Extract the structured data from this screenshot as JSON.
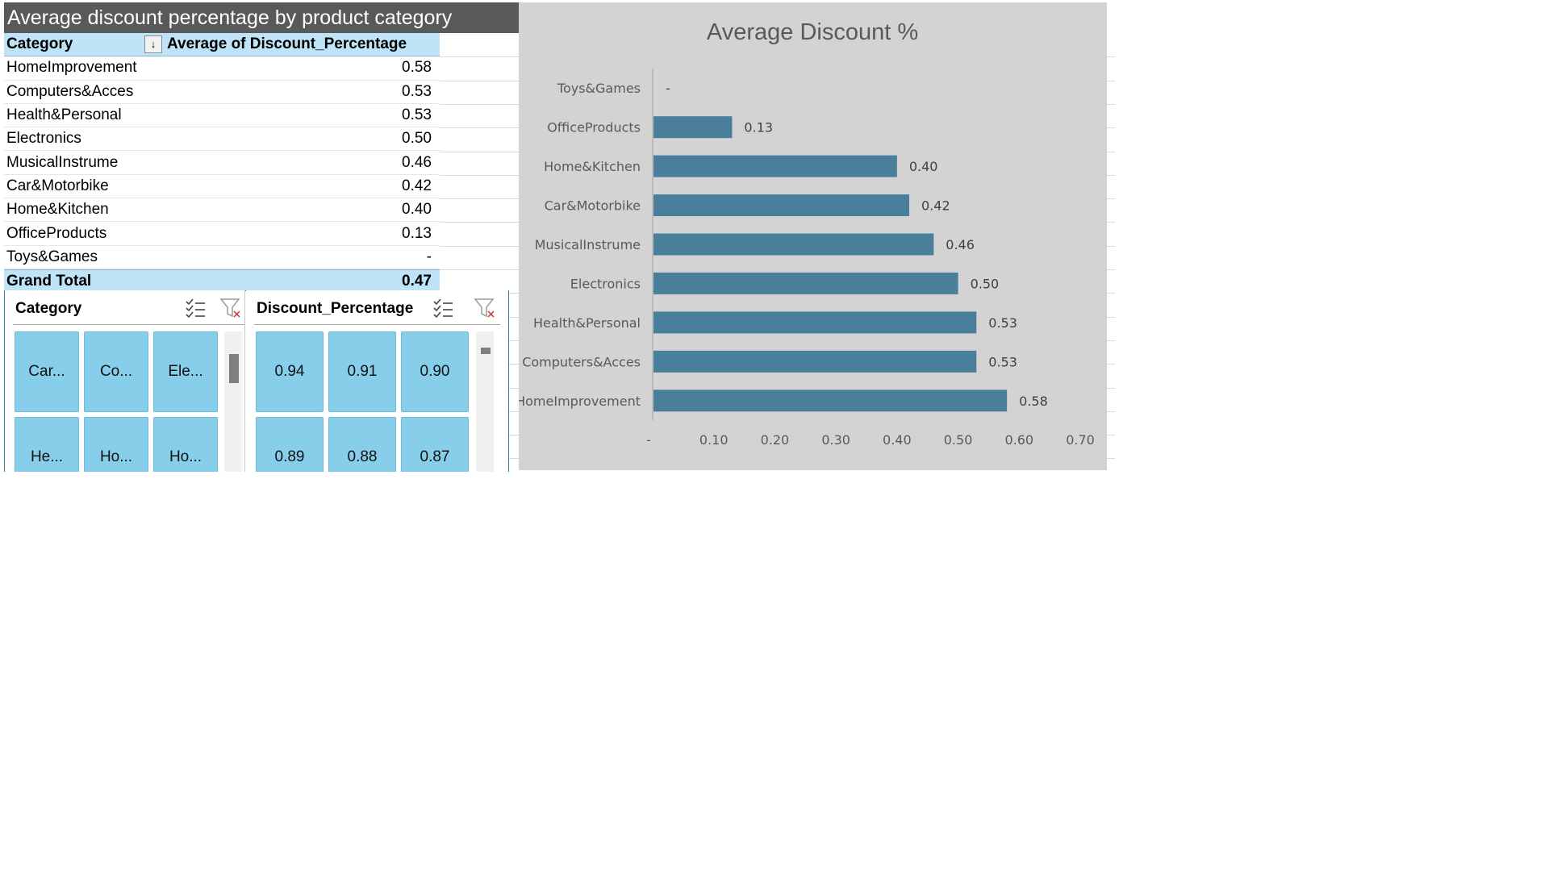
{
  "pivot": {
    "banner_title": "Average discount percentage by product category",
    "header": {
      "col1": "Category",
      "col2": "Average of Discount_Percentage"
    },
    "rows": [
      {
        "category": "HomeImprovement",
        "value": "0.58"
      },
      {
        "category": "Computers&Acces",
        "value": "0.53"
      },
      {
        "category": "Health&Personal",
        "value": "0.53"
      },
      {
        "category": "Electronics",
        "value": "0.50"
      },
      {
        "category": "MusicalInstrume",
        "value": "0.46"
      },
      {
        "category": "Car&Motorbike",
        "value": "0.42"
      },
      {
        "category": "Home&Kitchen",
        "value": "0.40"
      },
      {
        "category": "OfficeProducts",
        "value": "0.13"
      },
      {
        "category": "Toys&Games",
        "value": "-"
      }
    ],
    "total": {
      "label": "Grand Total",
      "value": "0.47"
    }
  },
  "slicers": {
    "category": {
      "title": "Category",
      "tiles": [
        "Car...",
        "Co...",
        "Ele...",
        "He...",
        "Ho...",
        "Ho..."
      ]
    },
    "discount": {
      "title": "Discount_Percentage",
      "tiles": [
        "0.94",
        "0.91",
        "0.90",
        "0.89",
        "0.88",
        "0.87"
      ]
    }
  },
  "colors": {
    "bar": "#4a7f9b",
    "chart_bg": "#d3d3d3",
    "pivot_header": "#bfe3f7",
    "slicer_tile": "#87ceeb",
    "banner": "#595959"
  },
  "icons": {
    "sort": "sort-descending-icon",
    "multiselect": "multiselect-icon",
    "clear_filter": "clear-filter-icon"
  },
  "chart_data": {
    "type": "bar",
    "orientation": "horizontal",
    "title": "Average Discount %",
    "categories": [
      "Toys&Games",
      "OfficeProducts",
      "Home&Kitchen",
      "Car&Motorbike",
      "MusicalInstrume",
      "Electronics",
      "Health&Personal",
      "Computers&Acces",
      "HomeImprovement"
    ],
    "values": [
      0,
      0.13,
      0.4,
      0.42,
      0.46,
      0.5,
      0.53,
      0.53,
      0.58
    ],
    "data_labels": [
      "-",
      "0.13",
      "0.40",
      "0.42",
      "0.46",
      "0.50",
      "0.53",
      "0.53",
      "0.58"
    ],
    "xlim": [
      0,
      0.7
    ],
    "x_ticks": [
      0,
      0.1,
      0.2,
      0.3,
      0.4,
      0.5,
      0.6,
      0.7
    ],
    "x_tick_labels": [
      "-",
      "0.10",
      "0.20",
      "0.30",
      "0.40",
      "0.50",
      "0.60",
      "0.70"
    ],
    "grid": false,
    "legend": "none"
  }
}
